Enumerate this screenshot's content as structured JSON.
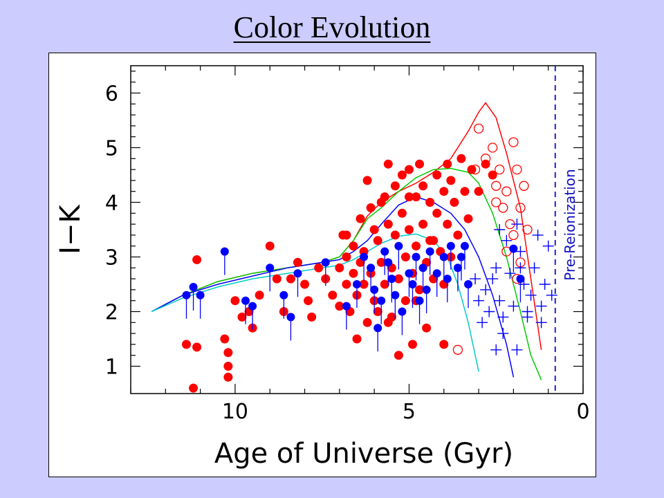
{
  "slide": {
    "title": "Color Evolution"
  },
  "chart_data": {
    "type": "scatter",
    "title": "",
    "xlabel": "Age of Universe (Gyr)",
    "ylabel": "I−K",
    "xlim": [
      13,
      0
    ],
    "ylim": [
      0.5,
      6.5
    ],
    "x_ticks": [
      10,
      5,
      0
    ],
    "y_ticks": [
      1,
      2,
      3,
      4,
      5,
      6
    ],
    "grid": false,
    "colors": {
      "red": "#ff0000",
      "blue": "#0000ff",
      "green": "#00cc00",
      "cyan": "#00cccc",
      "dash": "#2020c0"
    },
    "annotations": [
      {
        "text": "Pre-Reionization",
        "x": 0.8,
        "orientation": "vertical"
      }
    ],
    "reference_lines": [
      {
        "x": 0.8,
        "style": "dashed",
        "color": "#2020c0"
      }
    ],
    "series": [
      {
        "marker": "filled-circle",
        "color": "#ff0000",
        "points": [
          [
            11.4,
            1.4
          ],
          [
            11.2,
            0.6
          ],
          [
            11.1,
            1.35
          ],
          [
            11.1,
            2.95
          ],
          [
            10.3,
            1.5
          ],
          [
            10.2,
            1.0
          ],
          [
            10.2,
            0.8
          ],
          [
            10.2,
            1.25
          ],
          [
            10.0,
            2.2
          ],
          [
            9.8,
            1.9
          ],
          [
            9.6,
            2.0
          ],
          [
            9.5,
            1.7
          ],
          [
            9.3,
            2.3
          ],
          [
            9.0,
            3.2
          ],
          [
            8.8,
            2.6
          ],
          [
            8.6,
            2.0
          ],
          [
            8.4,
            2.6
          ],
          [
            8.2,
            2.9
          ],
          [
            8.0,
            2.5
          ],
          [
            7.9,
            2.2
          ],
          [
            7.8,
            1.9
          ],
          [
            7.6,
            2.8
          ],
          [
            7.4,
            2.6
          ],
          [
            7.2,
            2.3
          ],
          [
            7.0,
            2.8
          ],
          [
            7.0,
            2.1
          ],
          [
            6.9,
            3.4
          ],
          [
            6.8,
            3.0
          ],
          [
            6.8,
            2.5
          ],
          [
            6.7,
            2.0
          ],
          [
            6.6,
            3.2
          ],
          [
            6.6,
            2.7
          ],
          [
            6.5,
            1.5
          ],
          [
            6.5,
            2.3
          ],
          [
            6.4,
            3.7
          ],
          [
            6.4,
            2.9
          ],
          [
            6.3,
            3.1
          ],
          [
            6.3,
            2.5
          ],
          [
            6.2,
            1.8
          ],
          [
            6.2,
            4.4
          ],
          [
            6.1,
            3.9
          ],
          [
            6.1,
            2.7
          ],
          [
            6.0,
            3.5
          ],
          [
            6.0,
            2.2
          ],
          [
            5.9,
            3.3
          ],
          [
            5.9,
            2.0
          ],
          [
            5.8,
            4.0
          ],
          [
            5.8,
            2.9
          ],
          [
            5.7,
            4.1
          ],
          [
            5.7,
            2.5
          ],
          [
            5.6,
            4.7
          ],
          [
            5.6,
            3.6
          ],
          [
            5.5,
            2.8
          ],
          [
            5.5,
            1.9
          ],
          [
            5.4,
            4.3
          ],
          [
            5.4,
            3.4
          ],
          [
            5.3,
            1.2
          ],
          [
            5.3,
            2.6
          ],
          [
            5.2,
            4.5
          ],
          [
            5.2,
            3.8
          ],
          [
            5.1,
            3.0
          ],
          [
            5.1,
            2.2
          ],
          [
            5.0,
            4.6
          ],
          [
            5.0,
            3.5
          ],
          [
            4.9,
            2.7
          ],
          [
            4.9,
            1.4
          ],
          [
            4.8,
            4.1
          ],
          [
            4.8,
            3.2
          ],
          [
            4.7,
            2.4
          ],
          [
            4.6,
            4.3
          ],
          [
            4.6,
            3.6
          ],
          [
            4.5,
            2.9
          ],
          [
            4.5,
            1.7
          ],
          [
            4.4,
            4.0
          ],
          [
            4.4,
            3.3
          ],
          [
            4.3,
            2.6
          ],
          [
            4.2,
            4.5
          ],
          [
            4.2,
            3.8
          ],
          [
            4.1,
            3.1
          ],
          [
            4.0,
            4.2
          ],
          [
            4.0,
            2.5
          ],
          [
            3.9,
            3.6
          ],
          [
            3.8,
            4.4
          ],
          [
            3.8,
            3.0
          ],
          [
            3.7,
            4.0
          ],
          [
            3.6,
            3.4
          ],
          [
            3.5,
            4.8
          ],
          [
            3.4,
            4.2
          ],
          [
            3.3,
            3.7
          ],
          [
            3.2,
            4.6
          ],
          [
            3.0,
            4.2
          ],
          [
            2.8,
            4.7
          ],
          [
            2.6,
            4.5
          ],
          [
            4.0,
            1.4
          ],
          [
            4.3,
            3.3
          ],
          [
            4.8,
            2.2
          ],
          [
            5.6,
            1.8
          ],
          [
            5.0,
            4.1
          ],
          [
            4.7,
            4.7
          ],
          [
            3.9,
            4.7
          ],
          [
            6.8,
            3.4
          ]
        ]
      },
      {
        "marker": "open-circle",
        "color": "#ff0000",
        "points": [
          [
            3.6,
            1.3
          ],
          [
            3.0,
            5.35
          ],
          [
            2.8,
            4.8
          ],
          [
            2.6,
            5.0
          ],
          [
            2.5,
            4.3
          ],
          [
            2.4,
            4.6
          ],
          [
            2.3,
            3.9
          ],
          [
            2.2,
            4.2
          ],
          [
            2.1,
            3.6
          ],
          [
            2.0,
            5.1
          ],
          [
            2.0,
            3.4
          ],
          [
            1.9,
            4.6
          ],
          [
            1.8,
            3.9
          ],
          [
            1.7,
            4.3
          ],
          [
            1.6,
            3.5
          ],
          [
            1.8,
            2.9
          ],
          [
            1.9,
            2.6
          ],
          [
            2.2,
            3.1
          ],
          [
            2.5,
            4.0
          ],
          [
            3.1,
            4.6
          ]
        ]
      },
      {
        "marker": "filled-circle-with-stem",
        "color": "#0000ff",
        "points": [
          [
            11.4,
            2.3
          ],
          [
            11.2,
            2.45
          ],
          [
            11.0,
            2.3
          ],
          [
            10.3,
            3.1
          ],
          [
            9.7,
            2.2
          ],
          [
            9.5,
            2.1
          ],
          [
            9.0,
            2.8
          ],
          [
            8.6,
            2.3
          ],
          [
            8.4,
            1.9
          ],
          [
            8.2,
            2.7
          ],
          [
            7.4,
            2.9
          ],
          [
            6.8,
            2.1
          ],
          [
            6.5,
            2.5
          ],
          [
            6.3,
            3.0
          ],
          [
            6.1,
            2.8
          ],
          [
            6.0,
            2.4
          ],
          [
            5.9,
            1.7
          ],
          [
            5.8,
            2.2
          ],
          [
            5.7,
            3.1
          ],
          [
            5.6,
            2.9
          ],
          [
            5.5,
            2.6
          ],
          [
            5.4,
            2.3
          ],
          [
            5.3,
            3.2
          ],
          [
            5.2,
            2.0
          ],
          [
            5.0,
            2.7
          ],
          [
            4.9,
            2.5
          ],
          [
            4.8,
            3.0
          ],
          [
            4.7,
            2.2
          ],
          [
            4.6,
            2.8
          ],
          [
            4.5,
            2.4
          ],
          [
            4.4,
            3.1
          ],
          [
            4.2,
            2.7
          ],
          [
            4.0,
            3.0
          ],
          [
            3.9,
            2.6
          ],
          [
            3.8,
            3.2
          ],
          [
            3.6,
            2.8
          ],
          [
            3.5,
            3.0
          ],
          [
            3.4,
            3.2
          ],
          [
            3.3,
            2.5
          ],
          [
            2.0,
            3.15
          ],
          [
            1.8,
            2.6
          ]
        ]
      },
      {
        "marker": "plus",
        "color": "#0000ff",
        "points": [
          [
            3.1,
            2.6
          ],
          [
            3.0,
            2.2
          ],
          [
            2.9,
            1.8
          ],
          [
            2.8,
            2.4
          ],
          [
            2.7,
            2.0
          ],
          [
            2.6,
            2.6
          ],
          [
            2.5,
            2.8
          ],
          [
            2.4,
            2.2
          ],
          [
            2.3,
            1.6
          ],
          [
            2.2,
            3.3
          ],
          [
            2.1,
            2.7
          ],
          [
            2.0,
            2.1
          ],
          [
            1.9,
            3.6
          ],
          [
            1.8,
            3.1
          ],
          [
            1.7,
            2.5
          ],
          [
            1.6,
            1.9
          ],
          [
            1.5,
            2.3
          ],
          [
            1.4,
            2.8
          ],
          [
            1.3,
            3.4
          ],
          [
            1.2,
            2.1
          ],
          [
            1.1,
            2.5
          ],
          [
            1.0,
            3.2
          ],
          [
            0.9,
            2.3
          ],
          [
            2.5,
            1.3
          ],
          [
            1.9,
            1.3
          ],
          [
            2.3,
            1.9
          ],
          [
            1.2,
            1.8
          ],
          [
            2.4,
            3.5
          ],
          [
            1.8,
            2.8
          ],
          [
            1.6,
            2.0
          ]
        ]
      }
    ],
    "curves": [
      {
        "color": "#ff0000",
        "points": [
          [
            12.4,
            2.0
          ],
          [
            11.5,
            2.3
          ],
          [
            10.5,
            2.55
          ],
          [
            9.5,
            2.7
          ],
          [
            8.5,
            2.8
          ],
          [
            7.5,
            2.9
          ],
          [
            7.0,
            3.0
          ],
          [
            6.6,
            3.3
          ],
          [
            6.2,
            3.75
          ],
          [
            5.8,
            4.0
          ],
          [
            5.3,
            4.2
          ],
          [
            4.8,
            4.35
          ],
          [
            4.3,
            4.55
          ],
          [
            3.8,
            4.8
          ],
          [
            3.3,
            5.3
          ],
          [
            3.0,
            5.65
          ],
          [
            2.8,
            5.82
          ],
          [
            2.5,
            5.55
          ],
          [
            2.2,
            4.9
          ],
          [
            1.8,
            3.9
          ],
          [
            1.5,
            2.6
          ],
          [
            1.2,
            1.3
          ]
        ]
      },
      {
        "color": "#00cc00",
        "points": [
          [
            12.4,
            2.0
          ],
          [
            11.5,
            2.3
          ],
          [
            10.5,
            2.55
          ],
          [
            9.5,
            2.7
          ],
          [
            8.5,
            2.8
          ],
          [
            7.5,
            2.9
          ],
          [
            7.0,
            3.0
          ],
          [
            6.6,
            3.3
          ],
          [
            6.2,
            3.7
          ],
          [
            5.8,
            3.9
          ],
          [
            5.3,
            4.2
          ],
          [
            4.8,
            4.45
          ],
          [
            4.3,
            4.6
          ],
          [
            3.8,
            4.62
          ],
          [
            3.3,
            4.55
          ],
          [
            3.0,
            4.35
          ],
          [
            2.6,
            3.8
          ],
          [
            2.2,
            3.0
          ],
          [
            1.8,
            2.0
          ],
          [
            1.5,
            1.2
          ],
          [
            1.2,
            0.75
          ]
        ]
      },
      {
        "color": "#0000ff",
        "points": [
          [
            12.4,
            2.0
          ],
          [
            11.5,
            2.3
          ],
          [
            10.5,
            2.5
          ],
          [
            9.5,
            2.65
          ],
          [
            8.5,
            2.8
          ],
          [
            7.5,
            2.9
          ],
          [
            7.0,
            2.95
          ],
          [
            6.6,
            3.1
          ],
          [
            6.2,
            3.3
          ],
          [
            5.8,
            3.6
          ],
          [
            5.3,
            3.95
          ],
          [
            4.8,
            4.1
          ],
          [
            4.3,
            4.0
          ],
          [
            3.8,
            3.8
          ],
          [
            3.4,
            3.5
          ],
          [
            3.0,
            3.0
          ],
          [
            2.6,
            2.3
          ],
          [
            2.2,
            1.4
          ],
          [
            2.0,
            0.8
          ]
        ]
      },
      {
        "color": "#00cccc",
        "points": [
          [
            12.4,
            2.0
          ],
          [
            11.5,
            2.25
          ],
          [
            10.5,
            2.45
          ],
          [
            9.5,
            2.6
          ],
          [
            8.5,
            2.7
          ],
          [
            7.5,
            2.8
          ],
          [
            7.0,
            2.85
          ],
          [
            6.6,
            2.95
          ],
          [
            6.2,
            3.1
          ],
          [
            5.8,
            3.25
          ],
          [
            5.3,
            3.38
          ],
          [
            4.8,
            3.42
          ],
          [
            4.3,
            3.3
          ],
          [
            3.9,
            3.0
          ],
          [
            3.6,
            2.5
          ],
          [
            3.3,
            1.8
          ],
          [
            3.0,
            0.9
          ]
        ]
      }
    ]
  }
}
